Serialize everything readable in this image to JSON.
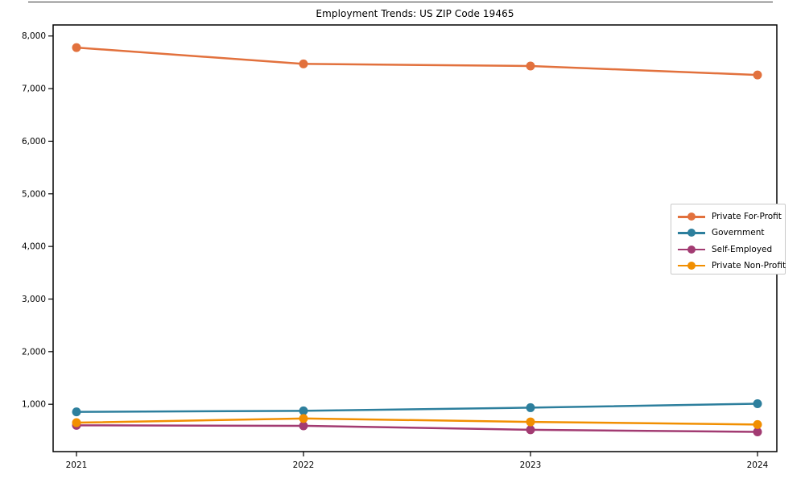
{
  "figure": {
    "background": "#ffffff",
    "border_color": "#3a3a3a"
  },
  "chart_data": {
    "type": "line",
    "title": "Employment Trends: US ZIP Code 19465",
    "xlabel": "",
    "ylabel": "",
    "grid": false,
    "legend_position": "center-right",
    "x_categories": [
      "2021",
      "2022",
      "2023",
      "2024"
    ],
    "y_ticks": [
      1000,
      2000,
      3000,
      4000,
      5000,
      6000,
      7000,
      8000
    ],
    "y_tick_labels": [
      "1,000",
      "2,000",
      "3,000",
      "4,000",
      "5,000",
      "6,000",
      "7,000",
      "8,000"
    ],
    "ylim": [
      100,
      8210
    ],
    "axis_color": "#000000",
    "series": [
      {
        "name": "Private For-Profit",
        "color": "#E2713D",
        "values": [
          7780,
          7470,
          7430,
          7260
        ]
      },
      {
        "name": "Government",
        "color": "#2D7F9D",
        "values": [
          855,
          875,
          935,
          1010
        ]
      },
      {
        "name": "Self-Employed",
        "color": "#A23B72",
        "values": [
          600,
          590,
          515,
          475
        ]
      },
      {
        "name": "Private Non-Profit",
        "color": "#F18F01",
        "values": [
          650,
          730,
          665,
          615
        ]
      }
    ]
  }
}
